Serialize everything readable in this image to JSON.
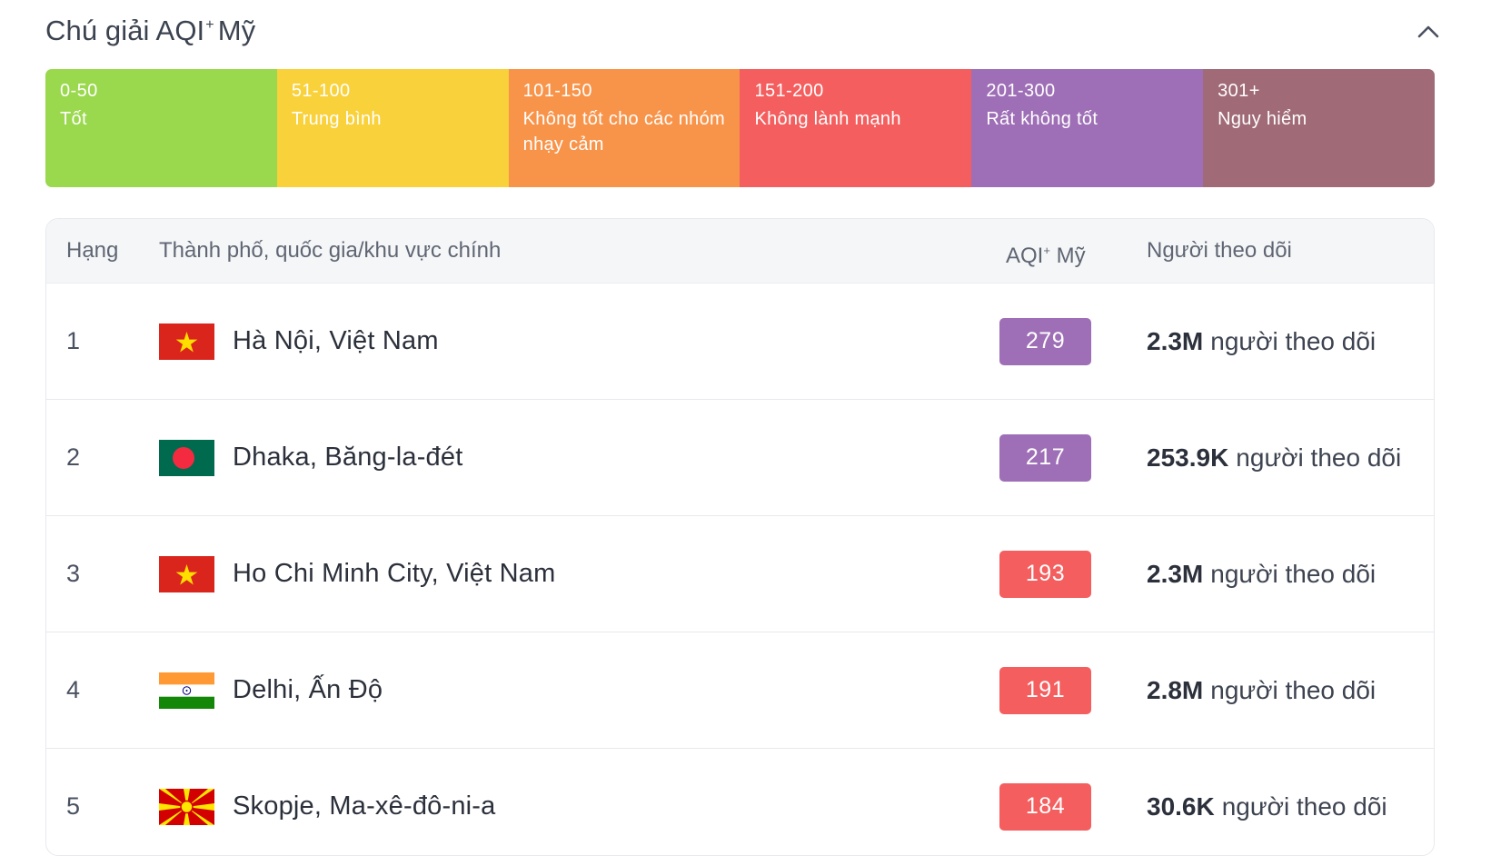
{
  "legend": {
    "title": "Chú giải AQI",
    "title_sup": "+",
    "title_suffix": "Mỹ",
    "collapse_icon": "chevron-up-icon",
    "segments": [
      {
        "range": "0-50",
        "label": "Tốt",
        "color": "#9ad84d"
      },
      {
        "range": "51-100",
        "label": "Trung bình",
        "color": "#f8d13b"
      },
      {
        "range": "101-150",
        "label": "Không tốt cho các nhóm nhạy cảm",
        "color": "#f8944a"
      },
      {
        "range": "151-200",
        "label": "Không lành mạnh",
        "color": "#f45e5e"
      },
      {
        "range": "201-300",
        "label": "Rất không tốt",
        "color": "#9e6fb6"
      },
      {
        "range": "301+",
        "label": "Nguy hiểm",
        "color": "#a06a77"
      }
    ]
  },
  "table": {
    "headers": {
      "rank": "Hạng",
      "city": "Thành phố, quốc gia/khu vực chính",
      "aqi": "AQI",
      "aqi_sup": "+",
      "aqi_suffix": "Mỹ",
      "followers": "Người theo dõi"
    },
    "rows": [
      {
        "rank": "1",
        "flag": "vietnam-flag-icon",
        "city": "Hà Nội, Việt Nam",
        "aqi": "279",
        "aqi_color": "#9e6fb6",
        "followers": "2.3M",
        "followers_word": "người theo dõi"
      },
      {
        "rank": "2",
        "flag": "bangladesh-flag-icon",
        "city": "Dhaka, Băng-la-đét",
        "aqi": "217",
        "aqi_color": "#9e6fb6",
        "followers": "253.9K",
        "followers_word": "người theo dõi"
      },
      {
        "rank": "3",
        "flag": "vietnam-flag-icon",
        "city": "Ho Chi Minh City, Việt Nam",
        "aqi": "193",
        "aqi_color": "#f45e5e",
        "followers": "2.3M",
        "followers_word": "người theo dõi"
      },
      {
        "rank": "4",
        "flag": "india-flag-icon",
        "city": "Delhi, Ấn Độ",
        "aqi": "191",
        "aqi_color": "#f45e5e",
        "followers": "2.8M",
        "followers_word": "người theo dõi"
      },
      {
        "rank": "5",
        "flag": "north-macedonia-flag-icon",
        "city": "Skopje, Ma-xê-đô-ni-a",
        "aqi": "184",
        "aqi_color": "#f45e5e",
        "followers": "30.6K",
        "followers_word": "người theo dõi"
      }
    ]
  }
}
